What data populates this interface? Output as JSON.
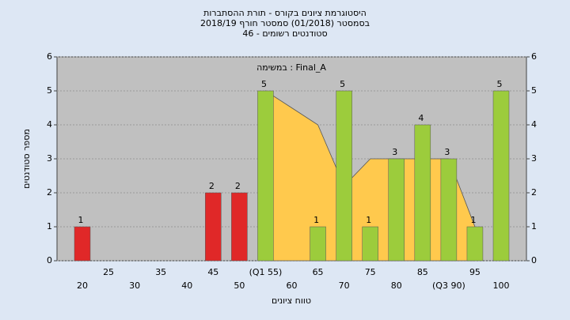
{
  "chart_data": {
    "type": "bar",
    "title": [
      "היסטוגרמת ציונים בקורס - תורת ההסתברות",
      "בסמסטר (01/2018)  סמסטר חורף 2018/19",
      "סטודנטים רשומים - 46"
    ],
    "annotation": "במשימה : Final_A",
    "x_label": "טווח ציונים",
    "y_label": "מספר סטודנטים",
    "categories": [
      "20",
      "25",
      "30",
      "35",
      "40",
      "45",
      "50",
      "(Q1 55)",
      "60",
      "65",
      "70",
      "75",
      "80",
      "85",
      "(Q3 90)",
      "95",
      "100"
    ],
    "series": [
      {
        "values": [
          1,
          0,
          0,
          0,
          0,
          2,
          2,
          5,
          0,
          1,
          5,
          1,
          3,
          4,
          3,
          1,
          5
        ],
        "colors": [
          "#e02828",
          "#e02828",
          "#e02828",
          "#e02828",
          "#e02828",
          "#e02828",
          "#e02828",
          "#9ccc3c",
          "#9ccc3c",
          "#9ccc3c",
          "#9ccc3c",
          "#9ccc3c",
          "#9ccc3c",
          "#9ccc3c",
          "#9ccc3c",
          "#9ccc3c",
          "#9ccc3c"
        ]
      }
    ],
    "area": {
      "color": "#ffc94d",
      "values": [
        null,
        null,
        null,
        null,
        null,
        null,
        null,
        5,
        4.5,
        4,
        2.2,
        3,
        3,
        3,
        3,
        1,
        null
      ]
    },
    "ylim": [
      0,
      6
    ],
    "yticks": [
      0,
      1,
      2,
      3,
      4,
      5,
      6
    ],
    "y2lim": [
      0,
      6
    ],
    "y2ticks": [
      0,
      1,
      2,
      3,
      4,
      5,
      6
    ],
    "grid": true
  }
}
